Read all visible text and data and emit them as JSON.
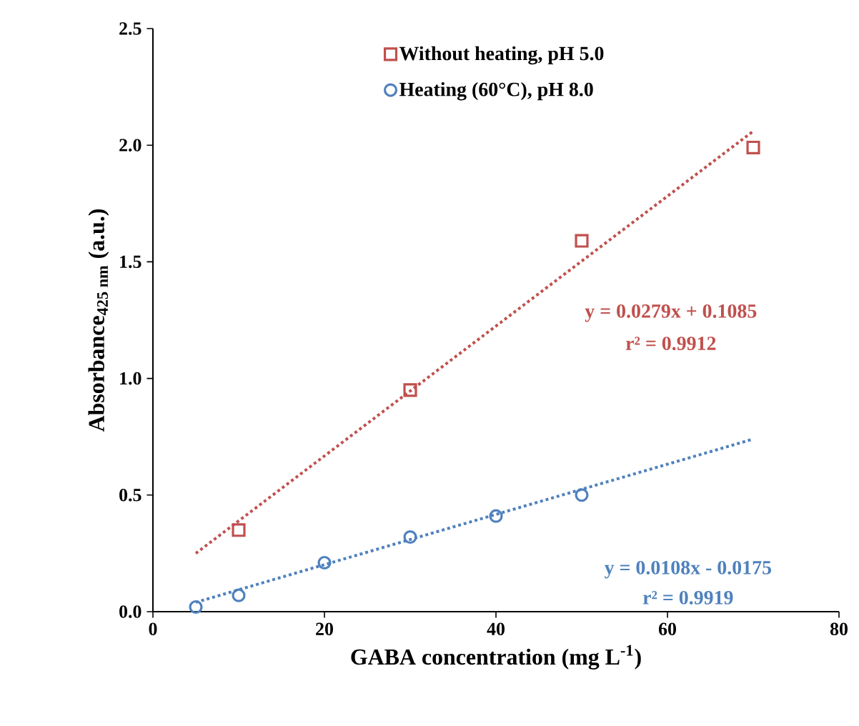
{
  "chart_data": {
    "type": "scatter",
    "xlabel": "GABA concentration (mg L$^{-1}$)",
    "ylabel": "Absorbance$_{425 nm}$ (a.u.)",
    "xlim": [
      0,
      80
    ],
    "ylim": [
      0,
      2.5
    ],
    "xticks": [
      0,
      20,
      40,
      60,
      80
    ],
    "yticks": [
      {
        "value": 0,
        "label": "0.0"
      },
      {
        "value": 0.5,
        "label": "0.5"
      },
      {
        "value": 1,
        "label": "1.0"
      },
      {
        "value": 1.5,
        "label": "1.5"
      },
      {
        "value": 2,
        "label": "2.0"
      },
      {
        "value": 2.5,
        "label": "2.5"
      }
    ],
    "grid": false,
    "legend": "top",
    "series": [
      {
        "name": "Without heating, pH 5.0",
        "marker": "square",
        "color": "#c0504d",
        "x": [
          10,
          30,
          50,
          70
        ],
        "values": [
          0.35,
          0.95,
          1.59,
          1.99
        ]
      },
      {
        "name": "Heating (60°C), pH 8.0",
        "marker": "circle",
        "color": "#4f81bd",
        "x": [
          5,
          10,
          20,
          30,
          40,
          50
        ],
        "values": [
          0.02,
          0.07,
          0.21,
          0.32,
          0.41,
          0.5
        ]
      },
      {
        "type": "line",
        "line_style": "dotted",
        "marker": "none",
        "color": "#c0504d",
        "x": [
          5,
          70
        ],
        "values": [
          0.25,
          2.06
        ]
      },
      {
        "type": "line",
        "line_style": "dotted",
        "marker": "none",
        "color": "#4f81bd",
        "x": [
          5,
          70
        ],
        "values": [
          0.04,
          0.74
        ]
      }
    ],
    "annotations": [
      "y = 0.0279x + 0.1085",
      "r² = 0.9912",
      "y = 0.0108x - 0.0175",
      "r² = 0.9919"
    ]
  }
}
